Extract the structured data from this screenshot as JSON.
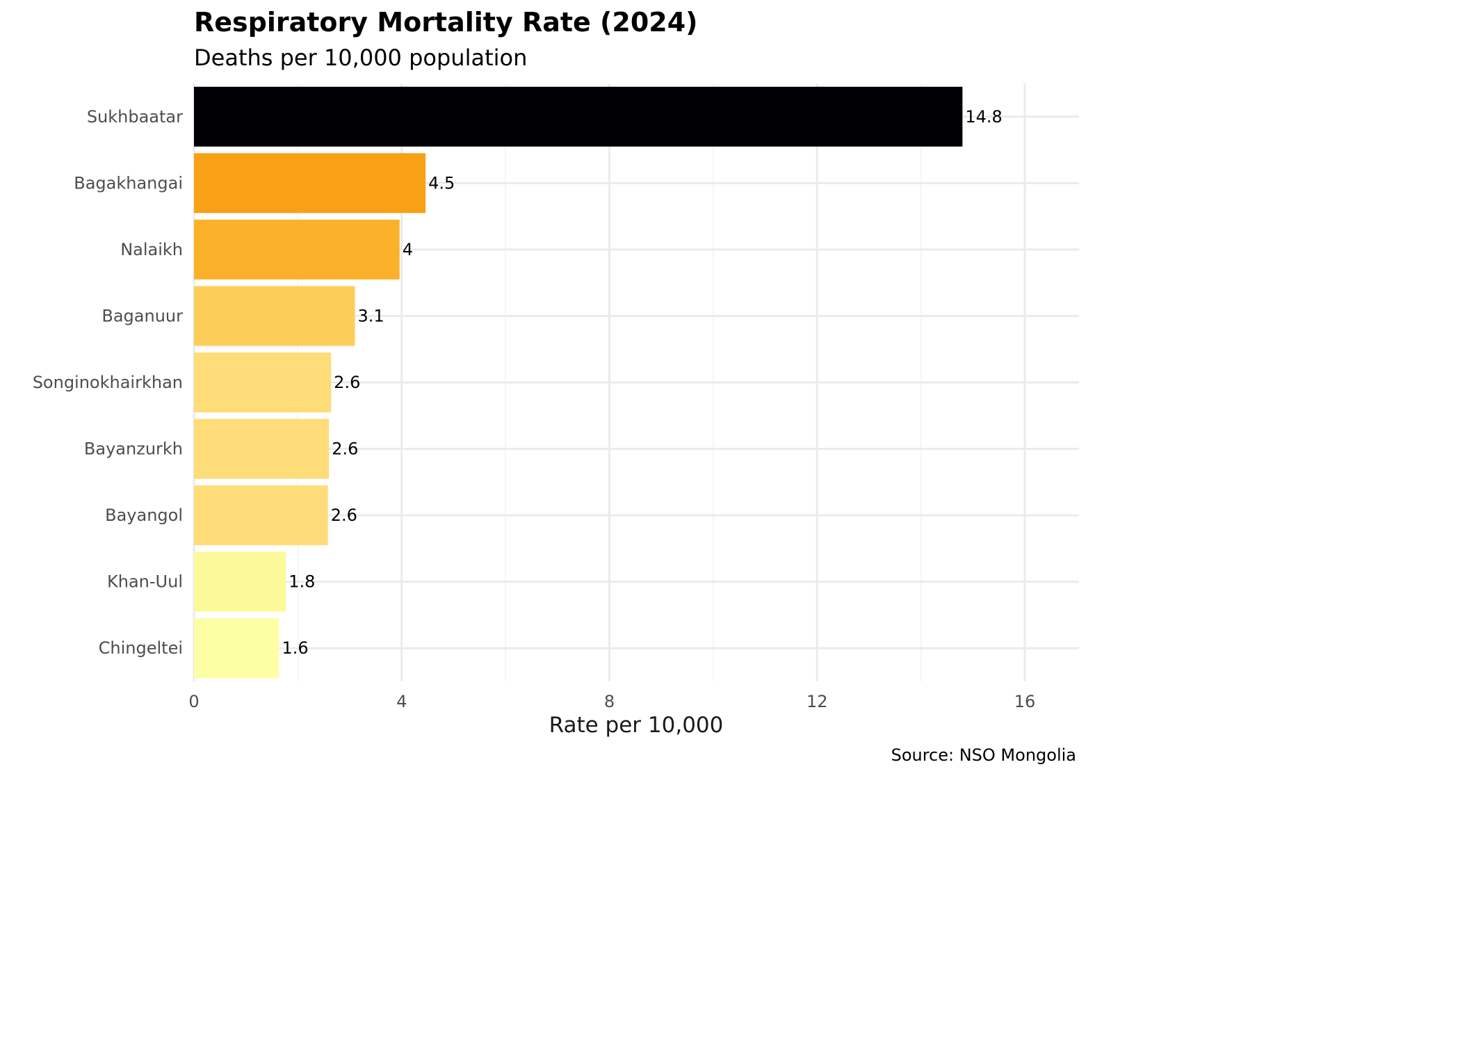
{
  "chart_data": {
    "type": "bar",
    "orientation": "horizontal",
    "title": "Respiratory Mortality Rate (2024)",
    "subtitle": "Deaths per 10,000 population",
    "xlabel": "Rate per 10,000",
    "ylabel": "",
    "source": "Source: NSO Mongolia",
    "xlim": [
      0,
      17
    ],
    "xticks": [
      0,
      4,
      8,
      12,
      16
    ],
    "grid": true,
    "categories": [
      "Sukhbaatar",
      "Bagakhangai",
      "Nalaikh",
      "Baganuur",
      "Songinokhairkhan",
      "Bayanzurkh",
      "Bayangol",
      "Khan-Uul",
      "Chingeltei"
    ],
    "values": [
      14.8,
      4.46,
      3.96,
      3.1,
      2.64,
      2.6,
      2.58,
      1.77,
      1.64
    ],
    "data_labels": [
      "14.8",
      "4.5",
      "4",
      "3.1",
      "2.6",
      "2.6",
      "2.6",
      "1.8",
      "1.6"
    ],
    "colors": [
      "#000004",
      "#F8A016",
      "#FBB22A",
      "#FDCD5A",
      "#FEDC78",
      "#FEDC78",
      "#FEDC78",
      "#FCF99A",
      "#FCFFA4"
    ]
  }
}
